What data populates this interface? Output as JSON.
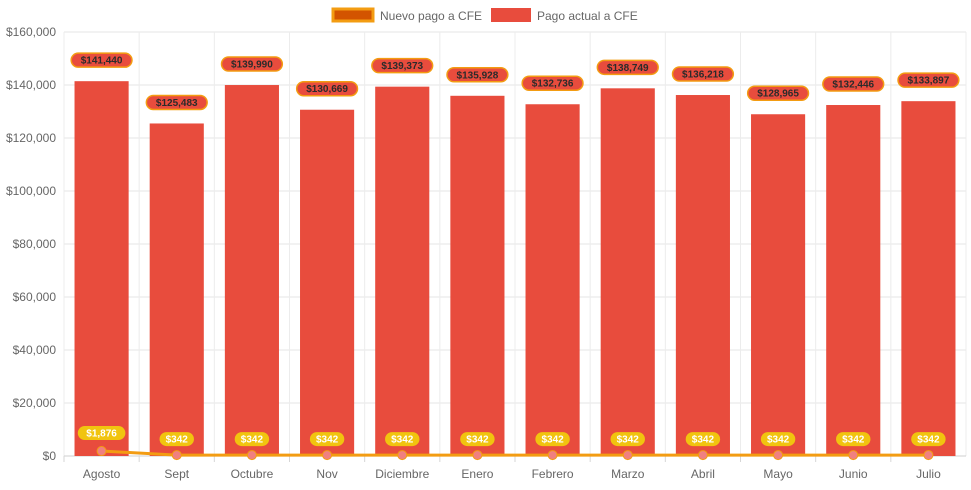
{
  "chart_data": {
    "type": "bar",
    "categories": [
      "Agosto",
      "Sept",
      "Octubre",
      "Nov",
      "Diciembre",
      "Enero",
      "Febrero",
      "Marzo",
      "Abril",
      "Mayo",
      "Junio",
      "Julio"
    ],
    "series": [
      {
        "name": "Pago actual a CFE",
        "kind": "bar",
        "color": "#e84c3d",
        "values": [
          141440,
          125483,
          139990,
          130669,
          139373,
          135928,
          132736,
          138749,
          136218,
          128965,
          132446,
          133897
        ],
        "labels": [
          "$141,440",
          "$125,483",
          "$139,990",
          "$130,669",
          "$139,373",
          "$135,928",
          "$132,736",
          "$138,749",
          "$136,218",
          "$128,965",
          "$132,446",
          "$133,897"
        ]
      },
      {
        "name": "Nuevo pago a CFE",
        "kind": "line",
        "color": "#f39c12",
        "legend_fill": "#d35400",
        "values": [
          1876,
          342,
          342,
          342,
          342,
          342,
          342,
          342,
          342,
          342,
          342,
          342
        ],
        "labels": [
          "$1,876",
          "$342",
          "$342",
          "$342",
          "$342",
          "$342",
          "$342",
          "$342",
          "$342",
          "$342",
          "$342",
          "$342"
        ]
      }
    ],
    "ylim": [
      0,
      160000
    ],
    "yticks": [
      "$0",
      "$20,000",
      "$40,000",
      "$60,000",
      "$80,000",
      "$100,000",
      "$120,000",
      "$140,000",
      "$160,000"
    ],
    "ytick_values": [
      0,
      20000,
      40000,
      60000,
      80000,
      100000,
      120000,
      140000,
      160000
    ],
    "grid": true,
    "legend_position": "top"
  }
}
